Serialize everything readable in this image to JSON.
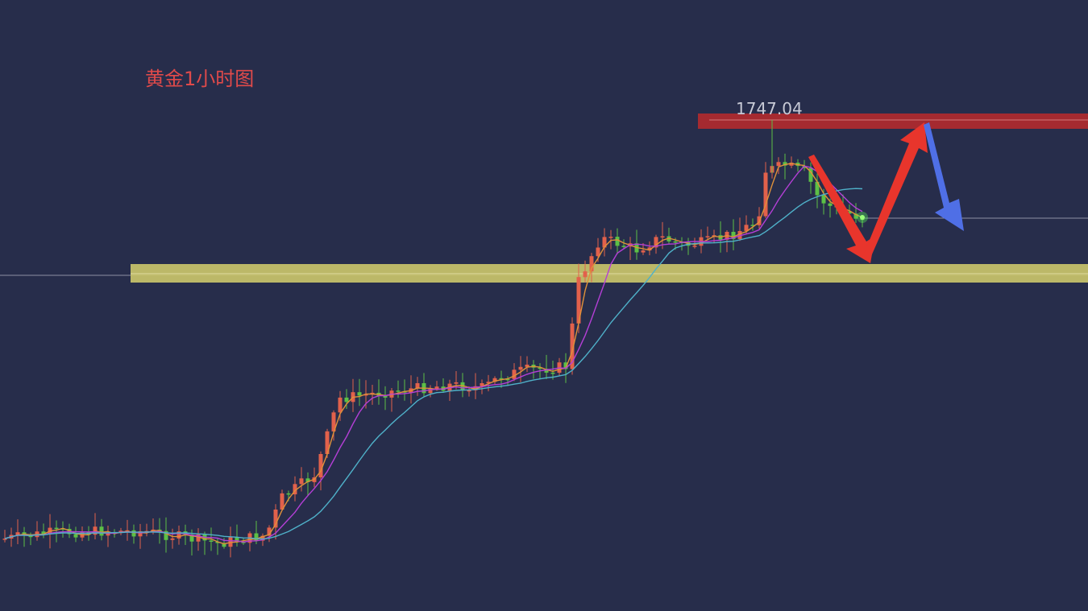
{
  "chart_data": {
    "type": "candlestick",
    "title": "黄金1小时图",
    "annotations": {
      "high_label": "1747.04",
      "resistance_zone_color": "#b02a2e",
      "support_zone_color": "#c9c46a",
      "arrow_down_color": "#e8352c",
      "arrow_up_color": "#e8352c",
      "arrow_final_color": "#4f6fe6"
    },
    "colors": {
      "background": "#272d4b",
      "up": "#e2614b",
      "down": "#5cc046",
      "ma_fast": "#e0913a",
      "ma_mid": "#b43fd6",
      "ma_slow": "#4fb1c9",
      "guide_line": "#8c8fa3"
    }
  }
}
